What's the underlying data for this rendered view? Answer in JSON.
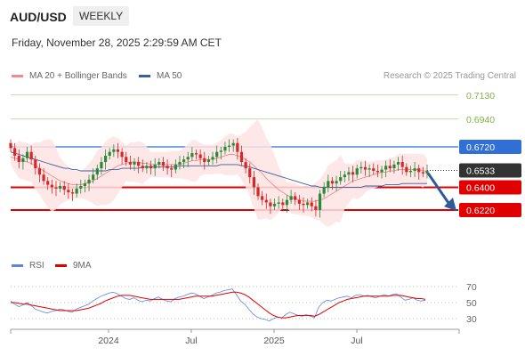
{
  "header": {
    "symbol": "AUD/USD",
    "timeframe": "WEEKLY",
    "datetime": "Friday, November 28, 2025 2:29:59 AM CET"
  },
  "legend": {
    "ma20_label": "MA 20 + Bollinger Bands",
    "ma50_label": "MA 50",
    "credit": "Research © 2025 Trading Central",
    "rsi_label": "RSI",
    "rsi_ma_label": "9MA"
  },
  "colors": {
    "ma20": "#f28a8a",
    "ma50": "#3a5f9e",
    "bands": "#fde3e3",
    "candle_up": "#2a8a3a",
    "candle_down": "#d62828",
    "support": "#e00000",
    "resistance": "#2f6fd6",
    "target": "#7cb342",
    "arrow": "#2f5a9a",
    "rsi": "#5b87d9",
    "rsi_ma": "#e00000",
    "current": "#333333"
  },
  "chart_data": [
    {
      "type": "line",
      "subtype": "candlestick",
      "y_axis_side": "right",
      "x_ticks": [
        "2024",
        "Jul",
        "2025",
        "Jul"
      ],
      "levels": [
        {
          "label": "0.7130",
          "value": 0.713,
          "kind": "target"
        },
        {
          "label": "0.6940",
          "value": 0.694,
          "kind": "target"
        },
        {
          "label": "0.6720",
          "value": 0.672,
          "kind": "resistance"
        },
        {
          "label": "0.6533",
          "value": 0.6533,
          "kind": "current"
        },
        {
          "label": "0.6400",
          "value": 0.64,
          "kind": "support"
        },
        {
          "label": "0.6220",
          "value": 0.622,
          "kind": "support"
        }
      ],
      "forecast": {
        "direction": "down",
        "from": 0.6533,
        "to": 0.622
      },
      "close_series": [
        0.671,
        0.665,
        0.66,
        0.663,
        0.668,
        0.662,
        0.655,
        0.65,
        0.645,
        0.642,
        0.64,
        0.639,
        0.641,
        0.638,
        0.636,
        0.635,
        0.639,
        0.641,
        0.643,
        0.646,
        0.65,
        0.655,
        0.66,
        0.665,
        0.668,
        0.67,
        0.668,
        0.664,
        0.66,
        0.658,
        0.66,
        0.657,
        0.655,
        0.657,
        0.655,
        0.658,
        0.66,
        0.657,
        0.655,
        0.654,
        0.658,
        0.66,
        0.662,
        0.664,
        0.667,
        0.666,
        0.663,
        0.66,
        0.662,
        0.664,
        0.668,
        0.669,
        0.672,
        0.673,
        0.675,
        0.668,
        0.66,
        0.655,
        0.648,
        0.64,
        0.633,
        0.63,
        0.628,
        0.625,
        0.627,
        0.628,
        0.626,
        0.63,
        0.633,
        0.63,
        0.627,
        0.626,
        0.628,
        0.625,
        0.622,
        0.635,
        0.64,
        0.645,
        0.643,
        0.645,
        0.648,
        0.65,
        0.652,
        0.65,
        0.655,
        0.656,
        0.654,
        0.655,
        0.653,
        0.652,
        0.654,
        0.657,
        0.655,
        0.658,
        0.66,
        0.656,
        0.652,
        0.653,
        0.655,
        0.652,
        0.651,
        0.653
      ],
      "ma20": [
        0.664,
        0.663,
        0.662,
        0.661,
        0.66,
        0.659,
        0.657,
        0.655,
        0.653,
        0.651,
        0.649,
        0.647,
        0.645,
        0.644,
        0.643,
        0.642,
        0.642,
        0.642,
        0.643,
        0.644,
        0.645,
        0.647,
        0.649,
        0.651,
        0.653,
        0.655,
        0.657,
        0.658,
        0.659,
        0.66,
        0.66,
        0.66,
        0.659,
        0.659,
        0.658,
        0.658,
        0.658,
        0.658,
        0.658,
        0.658,
        0.658,
        0.658,
        0.659,
        0.66,
        0.661,
        0.661,
        0.662,
        0.662,
        0.662,
        0.662,
        0.663,
        0.664,
        0.665,
        0.666,
        0.666,
        0.665,
        0.664,
        0.662,
        0.66,
        0.657,
        0.654,
        0.651,
        0.647,
        0.644,
        0.641,
        0.638,
        0.636,
        0.634,
        0.632,
        0.631,
        0.63,
        0.629,
        0.629,
        0.629,
        0.629,
        0.63,
        0.631,
        0.633,
        0.635,
        0.637,
        0.639,
        0.641,
        0.643,
        0.645,
        0.646,
        0.647,
        0.648,
        0.649,
        0.65,
        0.651,
        0.652,
        0.652,
        0.653,
        0.653,
        0.654,
        0.654,
        0.654,
        0.654,
        0.654,
        0.654,
        0.653,
        0.653
      ],
      "ma50": [
        0.668,
        0.667,
        0.666,
        0.665,
        0.664,
        0.663,
        0.662,
        0.661,
        0.66,
        0.659,
        0.658,
        0.657,
        0.656,
        0.655,
        0.655,
        0.654,
        0.654,
        0.653,
        0.653,
        0.653,
        0.653,
        0.653,
        0.653,
        0.653,
        0.654,
        0.654,
        0.654,
        0.655,
        0.655,
        0.655,
        0.655,
        0.655,
        0.656,
        0.656,
        0.656,
        0.656,
        0.656,
        0.656,
        0.656,
        0.656,
        0.656,
        0.657,
        0.657,
        0.657,
        0.657,
        0.657,
        0.657,
        0.657,
        0.657,
        0.657,
        0.657,
        0.658,
        0.658,
        0.658,
        0.658,
        0.658,
        0.657,
        0.657,
        0.656,
        0.655,
        0.654,
        0.653,
        0.652,
        0.651,
        0.65,
        0.649,
        0.648,
        0.647,
        0.646,
        0.645,
        0.644,
        0.643,
        0.642,
        0.641,
        0.641,
        0.64,
        0.64,
        0.64,
        0.64,
        0.64,
        0.64,
        0.64,
        0.64,
        0.64,
        0.64,
        0.64,
        0.641,
        0.641,
        0.641,
        0.641,
        0.641,
        0.642,
        0.642,
        0.642,
        0.642,
        0.643,
        0.643,
        0.643,
        0.643,
        0.643,
        0.643,
        0.643
      ]
    },
    {
      "type": "line",
      "name": "RSI",
      "y_ticks": [
        70,
        50,
        30
      ],
      "rsi": [
        52,
        48,
        45,
        47,
        50,
        46,
        42,
        40,
        38,
        37,
        39,
        40,
        42,
        41,
        39,
        38,
        42,
        44,
        46,
        48,
        52,
        55,
        58,
        60,
        62,
        63,
        61,
        58,
        55,
        54,
        56,
        53,
        51,
        53,
        52,
        55,
        57,
        54,
        52,
        51,
        55,
        57,
        58,
        60,
        62,
        61,
        58,
        55,
        57,
        59,
        62,
        63,
        65,
        66,
        67,
        60,
        52,
        48,
        42,
        36,
        32,
        30,
        29,
        27,
        30,
        32,
        31,
        35,
        38,
        36,
        34,
        33,
        35,
        33,
        31,
        44,
        50,
        53,
        52,
        54,
        56,
        57,
        58,
        56,
        59,
        60,
        58,
        59,
        57,
        56,
        58,
        60,
        58,
        60,
        61,
        57,
        53,
        54,
        56,
        53,
        52,
        53
      ],
      "rsi_ma": [
        50,
        50,
        49,
        48,
        48,
        47,
        46,
        45,
        44,
        43,
        42,
        41,
        40,
        40,
        40,
        40,
        40,
        41,
        42,
        43,
        45,
        47,
        49,
        52,
        54,
        56,
        58,
        59,
        59,
        59,
        58,
        57,
        56,
        55,
        54,
        54,
        54,
        54,
        54,
        54,
        54,
        54,
        55,
        56,
        57,
        58,
        58,
        58,
        58,
        58,
        59,
        60,
        61,
        62,
        63,
        63,
        62,
        60,
        57,
        53,
        49,
        45,
        41,
        37,
        34,
        32,
        31,
        31,
        32,
        33,
        34,
        34,
        34,
        34,
        33,
        35,
        38,
        41,
        44,
        47,
        50,
        52,
        54,
        55,
        56,
        57,
        58,
        58,
        58,
        58,
        58,
        58,
        58,
        59,
        59,
        59,
        58,
        57,
        56,
        55,
        55,
        54
      ]
    }
  ]
}
